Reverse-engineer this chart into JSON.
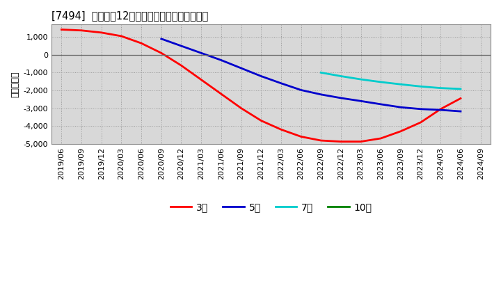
{
  "title": "[7494]  経常利益12か月移動合計の平均値の推移",
  "ylabel": "（百万円）",
  "ylim": [
    -5000,
    1700
  ],
  "yticks": [
    -5000,
    -4000,
    -3000,
    -2000,
    -1000,
    0,
    1000
  ],
  "background_color": "#ffffff",
  "plot_bg_color": "#d8d8d8",
  "grid_color": "#999999",
  "line_color_zero": "#666666",
  "series": {
    "3year": {
      "color": "#ff0000",
      "label": "3年",
      "dates": [
        "2019/06",
        "2019/09",
        "2019/12",
        "2020/03",
        "2020/06",
        "2020/09",
        "2020/12",
        "2021/03",
        "2021/06",
        "2021/09",
        "2021/12",
        "2022/03",
        "2022/06",
        "2022/09",
        "2022/12",
        "2023/03",
        "2023/06",
        "2023/09",
        "2023/12",
        "2024/03",
        "2024/06"
      ],
      "values": [
        1420,
        1370,
        1250,
        1050,
        650,
        100,
        -600,
        -1400,
        -2200,
        -3000,
        -3700,
        -4200,
        -4600,
        -4820,
        -4880,
        -4880,
        -4700,
        -4300,
        -3800,
        -3050,
        -2450
      ]
    },
    "5year": {
      "color": "#0000cc",
      "label": "5年",
      "dates": [
        "2020/09",
        "2020/12",
        "2021/03",
        "2021/06",
        "2021/09",
        "2021/12",
        "2022/03",
        "2022/06",
        "2022/09",
        "2022/12",
        "2023/03",
        "2023/06",
        "2023/09",
        "2023/12",
        "2024/03",
        "2024/06"
      ],
      "values": [
        900,
        500,
        100,
        -300,
        -750,
        -1200,
        -1600,
        -1980,
        -2230,
        -2430,
        -2600,
        -2780,
        -2950,
        -3050,
        -3100,
        -3180
      ]
    },
    "7year": {
      "color": "#00cccc",
      "label": "7年",
      "dates": [
        "2022/09",
        "2022/12",
        "2023/03",
        "2023/06",
        "2023/09",
        "2023/12",
        "2024/03",
        "2024/06"
      ],
      "values": [
        -1000,
        -1200,
        -1380,
        -1530,
        -1660,
        -1780,
        -1870,
        -1920
      ]
    },
    "10year": {
      "color": "#008000",
      "label": "10年",
      "dates": [],
      "values": []
    }
  },
  "xtick_labels": [
    "2019/06",
    "2019/09",
    "2019/12",
    "2020/03",
    "2020/06",
    "2020/09",
    "2020/12",
    "2021/03",
    "2021/06",
    "2021/09",
    "2021/12",
    "2022/03",
    "2022/06",
    "2022/09",
    "2022/12",
    "2023/03",
    "2023/06",
    "2023/09",
    "2023/12",
    "2024/03",
    "2024/06",
    "2024/09"
  ]
}
